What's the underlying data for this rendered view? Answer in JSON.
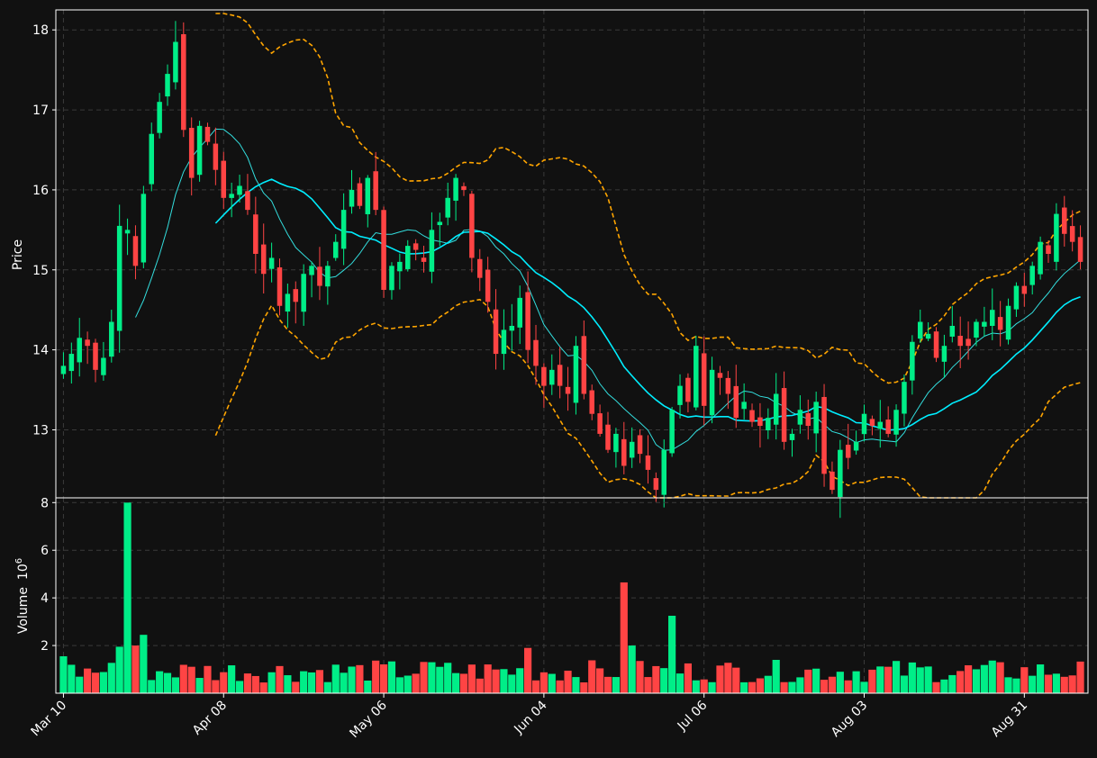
{
  "theme": {
    "background": "#111111",
    "up_color": "#00ee88",
    "down_color": "#ff4444",
    "grid_color": "#3a3a3a",
    "text_color": "#ffffff",
    "ma_fast_color": "#33dddd",
    "ma_slow_color": "#00eeff",
    "band_color": "#ffa500"
  },
  "chart_data": {
    "type": "candlestick",
    "price_panel": {
      "ylabel": "Price",
      "ylim": [
        12.15,
        18.25
      ],
      "yticks": [
        13,
        14,
        15,
        16,
        17,
        18
      ]
    },
    "volume_panel": {
      "ylabel": "Volume",
      "ylabel_unit": "10",
      "ylabel_exponent": "6",
      "ylim": [
        0,
        8.2
      ],
      "yticks": [
        2,
        4,
        6,
        8
      ]
    },
    "x_tick_labels": [
      {
        "label": "Mar 10",
        "index": 0
      },
      {
        "label": "Apr 08",
        "index": 20
      },
      {
        "label": "May 06",
        "index": 40
      },
      {
        "label": "Jun 04",
        "index": 60
      },
      {
        "label": "Jul 06",
        "index": 80
      },
      {
        "label": "Aug 03",
        "index": 100
      },
      {
        "label": "Aug 31",
        "index": 120
      }
    ],
    "grid": true,
    "candles": {
      "close": [
        13.8,
        13.95,
        14.15,
        14.05,
        13.75,
        13.9,
        14.35,
        15.55,
        15.5,
        15.05,
        15.95,
        16.7,
        17.1,
        17.45,
        17.85,
        16.75,
        16.15,
        16.8,
        16.6,
        16.25,
        15.9,
        15.95,
        16.05,
        15.75,
        15.2,
        14.95,
        15.15,
        14.55,
        14.7,
        14.6,
        14.95,
        15.05,
        14.8,
        15.05,
        15.35,
        15.75,
        16.0,
        15.8,
        16.15,
        15.75,
        14.75,
        15.05,
        15.1,
        15.3,
        15.25,
        15.1,
        15.5,
        15.6,
        15.9,
        16.15,
        16.0,
        15.15,
        14.9,
        14.6,
        13.95,
        14.25,
        14.3,
        14.65,
        14.0,
        13.8,
        13.55,
        13.75,
        13.55,
        13.45,
        14.05,
        13.45,
        13.2,
        12.95,
        12.75,
        12.95,
        12.55,
        12.85,
        12.7,
        12.5,
        12.25,
        12.75,
        13.25,
        13.55,
        13.35,
        14.05,
        13.3,
        13.75,
        13.65,
        13.45,
        13.15,
        13.35,
        13.1,
        13.05,
        13.15,
        13.45,
        12.85,
        12.95,
        13.25,
        13.05,
        13.35,
        12.45,
        12.25,
        12.75,
        12.65,
        12.85,
        13.2,
        13.05,
        13.1,
        12.95,
        13.25,
        13.6,
        14.1,
        14.35,
        14.2,
        13.9,
        14.05,
        14.3,
        14.05,
        14.05,
        14.35,
        14.35,
        14.5,
        14.25,
        14.55,
        14.8,
        14.7,
        15.05,
        15.35,
        15.2,
        15.7,
        15.45,
        15.35,
        15.1
      ]
    },
    "series": [
      {
        "id": "ma_fast",
        "values_note": "20-bar moving average"
      },
      {
        "id": "ma_slow",
        "values_note": "40-bar moving average"
      },
      {
        "id": "band_upper",
        "values_note": "upper envelope"
      },
      {
        "id": "band_lower",
        "values_note": "lower envelope"
      }
    ]
  }
}
